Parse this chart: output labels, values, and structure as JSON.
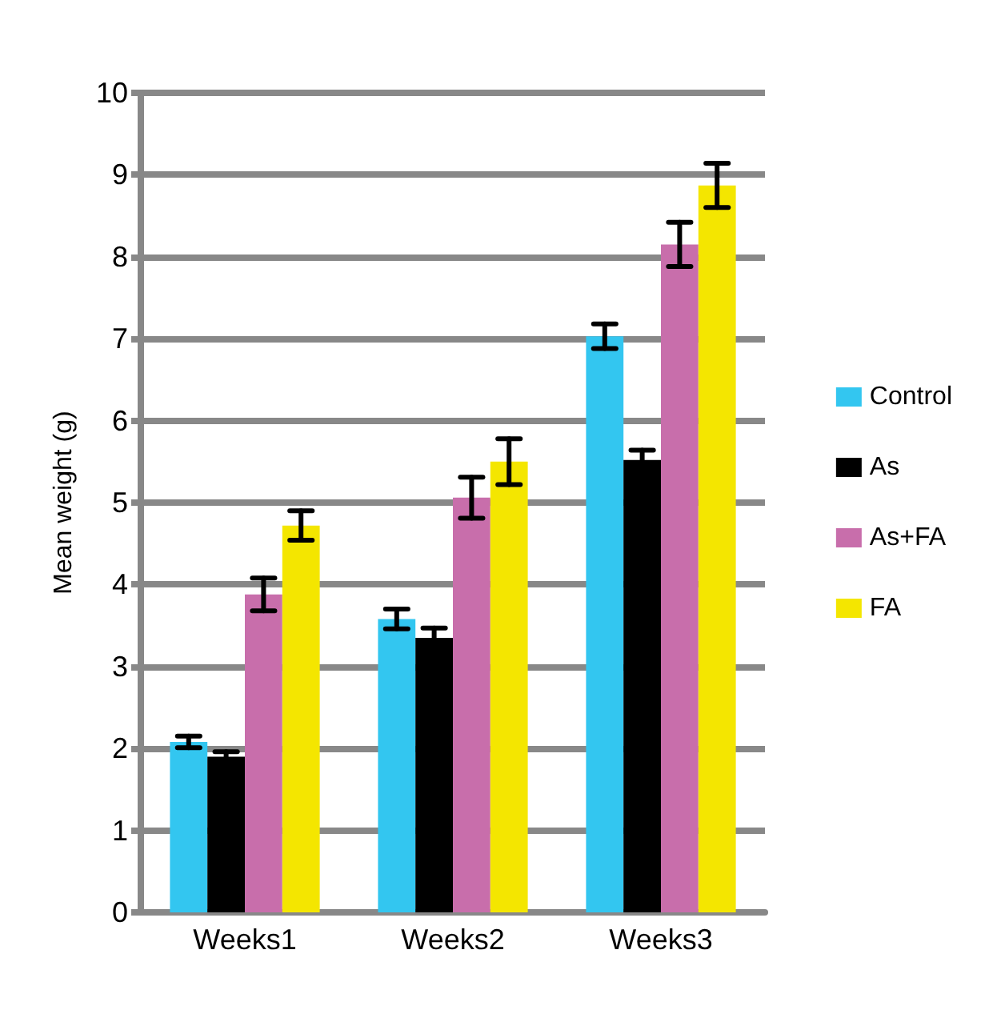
{
  "chart_data": {
    "type": "bar",
    "ylabel": "Mean weight (g)",
    "categories": [
      "Weeks1",
      "Weeks2",
      "Weeks3"
    ],
    "series": [
      {
        "name": "Control",
        "color": "#33c6f0",
        "values": [
          2.08,
          3.58,
          7.03
        ],
        "errors": [
          0.07,
          0.12,
          0.15
        ]
      },
      {
        "name": "As",
        "color": "#000000",
        "values": [
          1.9,
          3.35,
          5.52
        ],
        "errors": [
          0.06,
          0.12,
          0.12
        ]
      },
      {
        "name": "As+FA",
        "color": "#c86eab",
        "values": [
          3.88,
          5.06,
          8.15
        ],
        "errors": [
          0.2,
          0.25,
          0.27
        ]
      },
      {
        "name": "FA",
        "color": "#f4e600",
        "values": [
          4.72,
          5.5,
          8.87
        ],
        "errors": [
          0.18,
          0.28,
          0.27
        ]
      }
    ],
    "ylim": [
      0,
      10
    ],
    "yticks": [
      0,
      1,
      2,
      3,
      4,
      5,
      6,
      7,
      8,
      9,
      10
    ],
    "grid": "y",
    "legend": "right"
  }
}
